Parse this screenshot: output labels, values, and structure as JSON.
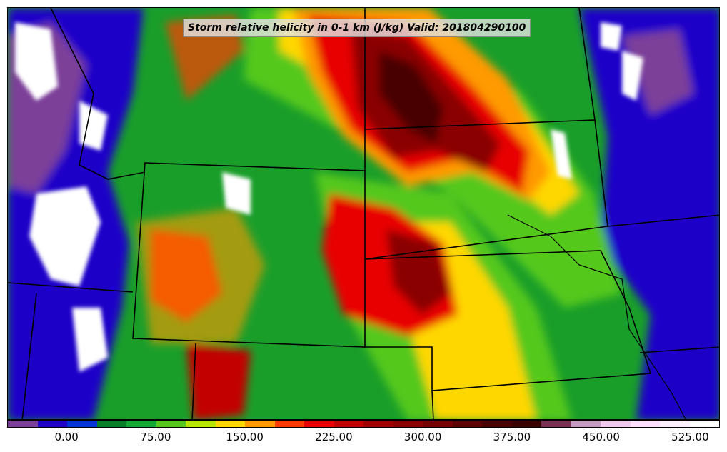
{
  "map": {
    "title": "Storm relative helicity in 0-1 km (J/kg) Valid: 201804290100",
    "colors": {
      "background": "#1a9e2a",
      "border_lines": "#000000"
    }
  },
  "colorbar": {
    "colors": [
      "#7b3f99",
      "#1f00c8",
      "#0033d6",
      "#0a7f2a",
      "#15a834",
      "#55c81e",
      "#b6e500",
      "#ffd700",
      "#ff9a00",
      "#ff3a00",
      "#e80000",
      "#c20000",
      "#a00000",
      "#8a0000",
      "#740000",
      "#5c0000",
      "#480000",
      "#3a0000",
      "#7a3052",
      "#c79ac2",
      "#f0c8ee",
      "#ffe0ff",
      "#fff0ff",
      "#ffffff"
    ],
    "tick_labels": [
      "0.00",
      "75.00",
      "150.00",
      "225.00",
      "300.00",
      "375.00",
      "450.00",
      "525.00"
    ],
    "tick_values": [
      0,
      75,
      150,
      225,
      300,
      375,
      450,
      525
    ],
    "min": -50,
    "max": 550
  }
}
